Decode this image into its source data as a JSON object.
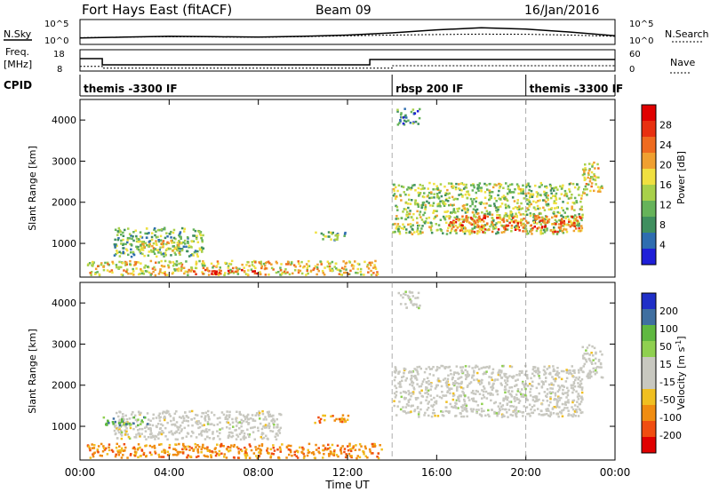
{
  "header": {
    "station": "Fort Hays East (fitACF)",
    "beam": "Beam 09",
    "date": "16/Jan/2016"
  },
  "strip_labels": {
    "nsky": "N.Sky",
    "nsearch": "N.Search",
    "freq": "Freq.",
    "freq_unit": "[MHz]",
    "nave": "Nave",
    "cpid": "CPID"
  },
  "strip_ticks": {
    "noise_left_top": "10^5",
    "noise_left_bottom": "10^0",
    "noise_right_top": "10^5",
    "noise_right_bottom": "10^0",
    "freq_top": "18",
    "freq_bottom": "8",
    "nave_top": "60",
    "nave_bottom": "0"
  },
  "cpid_segments": [
    {
      "label": "themis -3300 IF",
      "start_hour": 0
    },
    {
      "label": "rbsp 200 IF",
      "start_hour": 14
    },
    {
      "label": "themis -3300 IF",
      "start_hour": 20
    }
  ],
  "colors": {
    "power_scale": [
      "#1f1fd8",
      "#2e6db0",
      "#3f8f5f",
      "#66b35a",
      "#a8d04a",
      "#f0e040",
      "#f0a030",
      "#ef6b1f",
      "#e83010",
      "#e00000"
    ],
    "velocity_scale": [
      "#e00000",
      "#f04d10",
      "#f08c10",
      "#f0bf20",
      "#c8c8c0",
      "#c8c8c0",
      "#8fd050",
      "#5fb840",
      "#3f6fa0",
      "#1f2fc8"
    ],
    "ground_scatter": "#c8c8c0"
  },
  "chart_data": [
    {
      "type": "line",
      "title": "N.Sky / N.Search",
      "x": [
        0,
        2,
        4,
        6,
        8,
        10,
        12,
        14,
        16,
        18,
        20,
        22,
        24
      ],
      "series": [
        {
          "name": "N.Sky",
          "values": [
            12,
            20,
            30,
            25,
            20,
            30,
            60,
            200,
            1000,
            3000,
            1500,
            300,
            40
          ]
        },
        {
          "name": "N.Search",
          "values": [
            15,
            20,
            25,
            22,
            18,
            25,
            40,
            60,
            80,
            100,
            90,
            60,
            30
          ]
        }
      ],
      "ylim": [
        1,
        100000
      ]
    },
    {
      "type": "line",
      "title": "Freq. / Nave",
      "series": [
        {
          "name": "Freq.",
          "x": [
            0,
            1,
            1,
            13,
            13,
            24
          ],
          "values": [
            14,
            14,
            10.5,
            10.5,
            13.5,
            13.5
          ]
        },
        {
          "name": "Nave",
          "x": [
            0,
            1,
            1,
            14,
            14,
            24
          ],
          "values": [
            10,
            10,
            4,
            4,
            12,
            12
          ]
        }
      ],
      "ylim_freq": [
        8,
        18
      ],
      "ylim_nave": [
        0,
        60
      ]
    },
    {
      "type": "heatmap",
      "title": "",
      "xlabel": "",
      "ylabel": "Slant Range [km]",
      "colorbar_label": "Power [dB]",
      "colorbar_ticks": [
        "4",
        "8",
        "12",
        "16",
        "20",
        "24",
        "28"
      ],
      "xlim": [
        0,
        24
      ],
      "ylim": [
        180,
        4500
      ],
      "y_ticks": [
        "1000",
        "2000",
        "3000",
        "4000"
      ],
      "regions": [
        {
          "x0": 0.3,
          "x1": 13.5,
          "y0": 250,
          "y1": 600,
          "level": 18
        },
        {
          "x0": 4.8,
          "x1": 8.0,
          "y0": 270,
          "y1": 380,
          "level": 28
        },
        {
          "x0": 1.5,
          "x1": 5.5,
          "y0": 700,
          "y1": 1400,
          "level": 12
        },
        {
          "x0": 2.5,
          "x1": 4.5,
          "y0": 780,
          "y1": 1100,
          "level": 18
        },
        {
          "x0": 10.5,
          "x1": 12.0,
          "y0": 1100,
          "y1": 1300,
          "level": 12
        },
        {
          "x0": 14.0,
          "x1": 22.5,
          "y0": 1250,
          "y1": 2500,
          "level": 14
        },
        {
          "x0": 16.5,
          "x1": 22.5,
          "y0": 1300,
          "y1": 1700,
          "level": 24
        },
        {
          "x0": 14.2,
          "x1": 15.2,
          "y0": 3900,
          "y1": 4300,
          "level": 8
        },
        {
          "x0": 22.5,
          "x1": 23.4,
          "y0": 2200,
          "y1": 3000,
          "level": 18
        }
      ]
    },
    {
      "type": "heatmap",
      "title": "",
      "xlabel": "Time UT",
      "ylabel": "Slant Range [km]",
      "colorbar_label": "Velocity [m s^-1]",
      "colorbar_ticks": [
        "200",
        "100",
        "50",
        "15",
        "-15",
        "-50",
        "-100",
        "-200"
      ],
      "x_ticks": [
        "00:00",
        "04:00",
        "08:00",
        "12:00",
        "16:00",
        "20:00",
        "00:00"
      ],
      "xlim": [
        0,
        24
      ],
      "ylim": [
        180,
        4500
      ],
      "y_ticks": [
        "1000",
        "2000",
        "3000",
        "4000"
      ],
      "regions": [
        {
          "x0": 0.3,
          "x1": 13.5,
          "y0": 250,
          "y1": 600,
          "level": "-50"
        },
        {
          "x0": 1.5,
          "x1": 9.0,
          "y0": 700,
          "y1": 1400,
          "level": "ground"
        },
        {
          "x0": 1.0,
          "x1": 3.0,
          "y0": 1050,
          "y1": 1250,
          "level": "50"
        },
        {
          "x0": 10.5,
          "x1": 12.0,
          "y0": 1100,
          "y1": 1300,
          "level": "-50"
        },
        {
          "x0": 14.0,
          "x1": 22.5,
          "y0": 1250,
          "y1": 2500,
          "level": "ground"
        },
        {
          "x0": 14.2,
          "x1": 15.2,
          "y0": 3900,
          "y1": 4300,
          "level": "ground"
        },
        {
          "x0": 22.5,
          "x1": 23.4,
          "y0": 2200,
          "y1": 3000,
          "level": "ground"
        }
      ]
    }
  ]
}
